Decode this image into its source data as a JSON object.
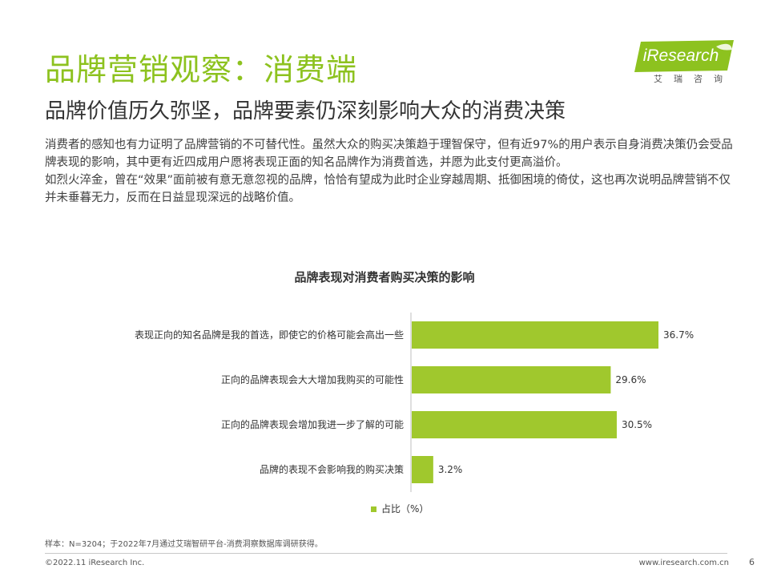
{
  "header": {
    "title": "品牌营销观察：消费端",
    "subtitle": "品牌价值历久弥坚，品牌要素仍深刻影响大众的消费决策"
  },
  "intro": {
    "paragraph1": "消费者的感知也有力证明了品牌营销的不可替代性。虽然大众的购买决策趋于理智保守，但有近97%的用户表示自身消费决策仍会受品牌表现的影响，其中更有近四成用户愿将表现正面的知名品牌作为消费首选，并愿为此支付更高溢价。",
    "paragraph2": "如烈火淬金，曾在“效果”面前被有意无意忽视的品牌，恰恰有望成为此时企业穿越周期、抵御困境的倚仗，这也再次说明品牌营销不仅并未垂暮无力，反而在日益显现深远的战略价值。"
  },
  "logo": {
    "wordmark": "iResearch",
    "chinese": "艾瑞咨询",
    "color": "#8dc21f"
  },
  "chart_data": {
    "type": "bar",
    "orientation": "horizontal",
    "title": "品牌表现对消费者购买决策的影响",
    "categories": [
      "表现正向的知名品牌是我的首选，即使它的价格可能会高出一些",
      "正向的品牌表现会大大增加我购买的可能性",
      "正向的品牌表现会增加我进一步了解的可能",
      "品牌的表现不会影响我的购买决策"
    ],
    "series": [
      {
        "name": "占比（%）",
        "values": [
          36.7,
          29.6,
          30.5,
          3.2
        ],
        "labels": [
          "36.7%",
          "29.6%",
          "30.5%",
          "3.2%"
        ],
        "color": "#a0c82d"
      }
    ],
    "xlim": [
      0,
      36.7
    ],
    "grid": false,
    "legend": "bottom"
  },
  "footer": {
    "source": "样本：N=3204；于2022年7月通过艾瑞智研平台-消费洞察数据库调研获得。",
    "copyright": "©2022.11 iResearch Inc.",
    "website": "www.iresearch.com.cn",
    "page": "6"
  }
}
